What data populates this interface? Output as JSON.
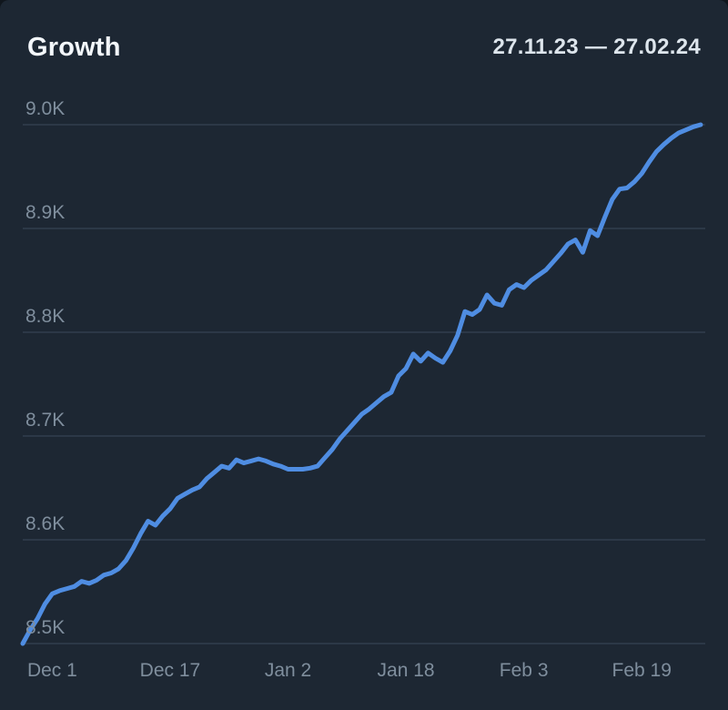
{
  "header": {
    "title": "Growth",
    "date_range": "27.11.23 — 27.02.24"
  },
  "colors": {
    "background": "#1d2733",
    "line": "#4f8de2",
    "grid": "#2c3847",
    "axis_label": "#7f8e9d",
    "title": "#f3f7fb",
    "date_range": "#dde5ec"
  },
  "chart_data": {
    "type": "line",
    "title": "Growth",
    "subtitle": "27.11.23 — 27.02.24",
    "grid": true,
    "legend": "none",
    "xlabel": "",
    "ylabel": "",
    "ylim": [
      8500,
      9045
    ],
    "x_range_days": [
      0,
      92
    ],
    "x_ticks": [
      {
        "label": "Dec 1",
        "day": 4
      },
      {
        "label": "Dec 17",
        "day": 20
      },
      {
        "label": "Jan 2",
        "day": 36
      },
      {
        "label": "Jan 18",
        "day": 52
      },
      {
        "label": "Feb 3",
        "day": 68
      },
      {
        "label": "Feb 19",
        "day": 84
      }
    ],
    "y_ticks": [
      {
        "label": "8.5K",
        "value": 8500
      },
      {
        "label": "8.6K",
        "value": 8600
      },
      {
        "label": "8.7K",
        "value": 8700
      },
      {
        "label": "8.8K",
        "value": 8800
      },
      {
        "label": "8.9K",
        "value": 8900
      },
      {
        "label": "9.0K",
        "value": 9000
      }
    ],
    "series": [
      {
        "name": "Growth",
        "color": "#4f8de2",
        "values": [
          8500,
          8513,
          8524,
          8538,
          8548,
          8551,
          8553,
          8555,
          8560,
          8558,
          8561,
          8566,
          8568,
          8572,
          8580,
          8592,
          8606,
          8618,
          8614,
          8623,
          8630,
          8640,
          8644,
          8648,
          8651,
          8659,
          8665,
          8671,
          8669,
          8677,
          8674,
          8676,
          8678,
          8676,
          8673,
          8671,
          8668,
          8668,
          8668,
          8669,
          8671,
          8679,
          8687,
          8697,
          8705,
          8713,
          8721,
          8726,
          8732,
          8738,
          8742,
          8758,
          8765,
          8779,
          8772,
          8780,
          8775,
          8771,
          8782,
          8797,
          8820,
          8817,
          8822,
          8836,
          8828,
          8826,
          8841,
          8846,
          8843,
          8850,
          8855,
          8860,
          8868,
          8876,
          8885,
          8889,
          8877,
          8898,
          8893,
          8911,
          8928,
          8938,
          8939,
          8945,
          8953,
          8964,
          8974,
          8981,
          8987,
          8992,
          8995,
          8998,
          9000
        ]
      }
    ]
  }
}
